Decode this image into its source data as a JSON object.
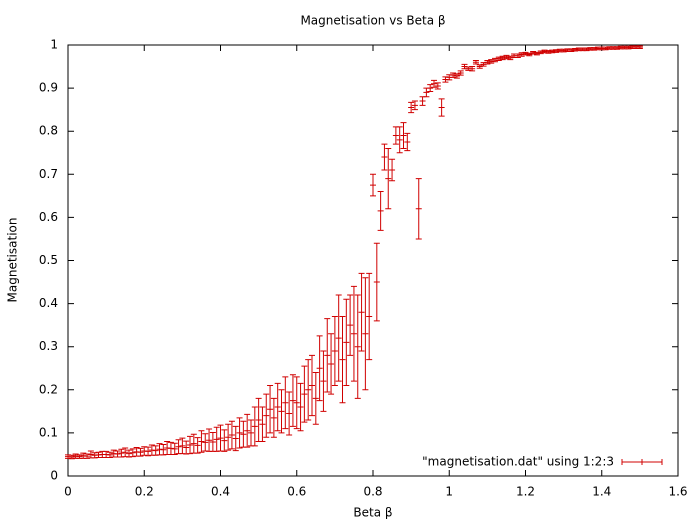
{
  "chart_data": {
    "type": "errorbar",
    "title": "Magnetisation vs Beta β",
    "x_label": "Beta β",
    "y_label": "Magnetisation",
    "xlim": [
      0,
      1.6
    ],
    "xticks": [
      0,
      0.2,
      0.4,
      0.6,
      0.8,
      1,
      1.2,
      1.4,
      1.6
    ],
    "ylim": [
      0,
      1
    ],
    "yticks": [
      0,
      0.1,
      0.2,
      0.3,
      0.4,
      0.5,
      0.6,
      0.7,
      0.8,
      0.9,
      1
    ],
    "legend": "bottom-right",
    "series": [
      {
        "name": "\"magnetisation.dat\" using 1:2:3",
        "color": "#d00000",
        "x": [
          0,
          0.01,
          0.02,
          0.03,
          0.04,
          0.05,
          0.06,
          0.07,
          0.08,
          0.09,
          0.1,
          0.11,
          0.12,
          0.13,
          0.14,
          0.15,
          0.16,
          0.17,
          0.18,
          0.19,
          0.2,
          0.21,
          0.22,
          0.23,
          0.24,
          0.25,
          0.26,
          0.27,
          0.28,
          0.29,
          0.3,
          0.31,
          0.32,
          0.33,
          0.34,
          0.35,
          0.36,
          0.37,
          0.38,
          0.39,
          0.4,
          0.41,
          0.42,
          0.43,
          0.44,
          0.45,
          0.46,
          0.47,
          0.48,
          0.49,
          0.5,
          0.51,
          0.52,
          0.53,
          0.54,
          0.55,
          0.56,
          0.57,
          0.58,
          0.59,
          0.6,
          0.61,
          0.62,
          0.63,
          0.64,
          0.65,
          0.66,
          0.67,
          0.68,
          0.69,
          0.7,
          0.71,
          0.72,
          0.73,
          0.74,
          0.75,
          0.76,
          0.77,
          0.78,
          0.79,
          0.8,
          0.81,
          0.82,
          0.83,
          0.84,
          0.85,
          0.86,
          0.87,
          0.88,
          0.89,
          0.9,
          0.91,
          0.92,
          0.93,
          0.94,
          0.95,
          0.96,
          0.97,
          0.98,
          0.99,
          1,
          1.01,
          1.02,
          1.03,
          1.04,
          1.05,
          1.06,
          1.07,
          1.08,
          1.09,
          1.1,
          1.11,
          1.12,
          1.13,
          1.14,
          1.15,
          1.16,
          1.17,
          1.18,
          1.19,
          1.2,
          1.21,
          1.22,
          1.23,
          1.24,
          1.25,
          1.26,
          1.27,
          1.28,
          1.29,
          1.3,
          1.31,
          1.32,
          1.33,
          1.34,
          1.35,
          1.36,
          1.37,
          1.38,
          1.39,
          1.4,
          1.41,
          1.42,
          1.43,
          1.44,
          1.45,
          1.46,
          1.47,
          1.48,
          1.49,
          1.5
        ],
        "values": [
          0.045,
          0.044,
          0.046,
          0.045,
          0.047,
          0.046,
          0.05,
          0.048,
          0.049,
          0.05,
          0.05,
          0.049,
          0.052,
          0.051,
          0.053,
          0.055,
          0.052,
          0.054,
          0.056,
          0.055,
          0.058,
          0.057,
          0.06,
          0.059,
          0.062,
          0.061,
          0.065,
          0.064,
          0.063,
          0.068,
          0.07,
          0.066,
          0.072,
          0.075,
          0.071,
          0.08,
          0.078,
          0.083,
          0.079,
          0.085,
          0.088,
          0.082,
          0.09,
          0.095,
          0.087,
          0.1,
          0.097,
          0.105,
          0.1,
          0.115,
          0.13,
          0.12,
          0.14,
          0.155,
          0.135,
          0.16,
          0.15,
          0.17,
          0.145,
          0.175,
          0.17,
          0.16,
          0.19,
          0.2,
          0.21,
          0.18,
          0.25,
          0.22,
          0.28,
          0.26,
          0.29,
          0.32,
          0.27,
          0.31,
          0.35,
          0.33,
          0.3,
          0.38,
          0.33,
          0.37,
          0.675,
          0.45,
          0.615,
          0.74,
          0.69,
          0.71,
          0.79,
          0.78,
          0.79,
          0.775,
          0.855,
          0.86,
          0.62,
          0.87,
          0.89,
          0.9,
          0.91,
          0.905,
          0.855,
          0.92,
          0.925,
          0.93,
          0.928,
          0.935,
          0.95,
          0.945,
          0.945,
          0.96,
          0.95,
          0.955,
          0.96,
          0.962,
          0.965,
          0.968,
          0.97,
          0.972,
          0.97,
          0.975,
          0.975,
          0.978,
          0.98,
          0.978,
          0.982,
          0.98,
          0.983,
          0.985,
          0.984,
          0.985,
          0.986,
          0.987,
          0.987,
          0.988,
          0.988,
          0.989,
          0.99,
          0.99,
          0.99,
          0.991,
          0.991,
          0.992,
          0.992,
          0.992,
          0.993,
          0.993,
          0.993,
          0.994,
          0.994,
          0.994,
          0.995,
          0.995,
          0.995
        ],
        "errors": [
          0.004,
          0.004,
          0.005,
          0.004,
          0.006,
          0.005,
          0.008,
          0.006,
          0.006,
          0.007,
          0.007,
          0.006,
          0.008,
          0.007,
          0.009,
          0.01,
          0.008,
          0.009,
          0.01,
          0.009,
          0.01,
          0.01,
          0.012,
          0.011,
          0.013,
          0.012,
          0.015,
          0.014,
          0.013,
          0.016,
          0.018,
          0.015,
          0.02,
          0.022,
          0.018,
          0.025,
          0.02,
          0.026,
          0.022,
          0.028,
          0.03,
          0.025,
          0.03,
          0.032,
          0.028,
          0.035,
          0.03,
          0.038,
          0.03,
          0.045,
          0.05,
          0.04,
          0.05,
          0.055,
          0.045,
          0.055,
          0.05,
          0.06,
          0.05,
          0.06,
          0.06,
          0.055,
          0.065,
          0.07,
          0.07,
          0.06,
          0.075,
          0.07,
          0.085,
          0.07,
          0.08,
          0.1,
          0.1,
          0.1,
          0.07,
          0.11,
          0.12,
          0.09,
          0.13,
          0.1,
          0.025,
          0.09,
          0.045,
          0.03,
          0.07,
          0.025,
          0.02,
          0.03,
          0.03,
          0.02,
          0.012,
          0.01,
          0.07,
          0.01,
          0.01,
          0.008,
          0.008,
          0.007,
          0.02,
          0.006,
          0.006,
          0.005,
          0.005,
          0.005,
          0.005,
          0.004,
          0.005,
          0.004,
          0.004,
          0.004,
          0.004,
          0.004,
          0.004,
          0.004,
          0.004,
          0.004,
          0.004,
          0.004,
          0.004,
          0.004,
          0.003,
          0.003,
          0.003,
          0.003,
          0.003,
          0.003,
          0.003,
          0.003,
          0.003,
          0.003,
          0.003,
          0.003,
          0.003,
          0.003,
          0.003,
          0.003,
          0.003,
          0.003,
          0.003,
          0.003,
          0.003,
          0.003,
          0.003,
          0.003,
          0.003,
          0.003,
          0.003,
          0.003,
          0.003,
          0.003,
          0.003
        ]
      }
    ]
  }
}
